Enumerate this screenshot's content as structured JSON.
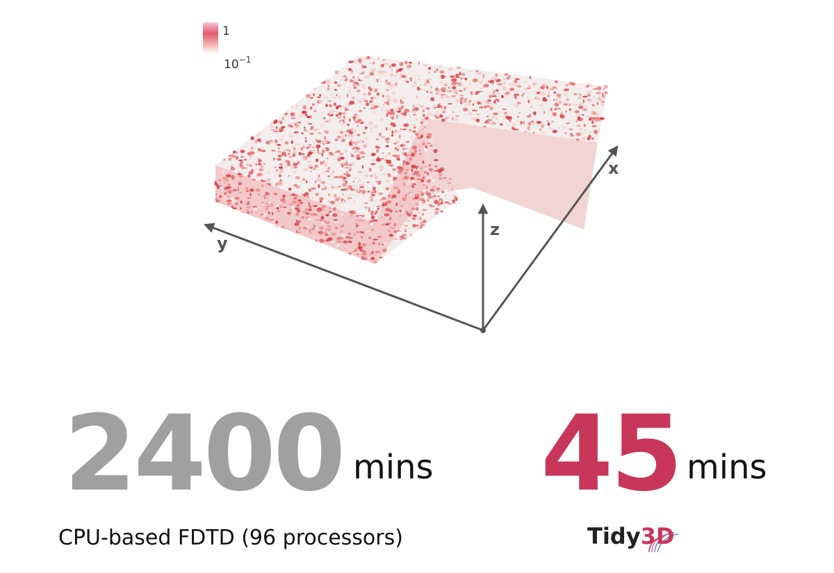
{
  "figure": {
    "legend": {
      "max_label": "1",
      "min_label_base": "10",
      "min_label_exp": "−1"
    },
    "axes": {
      "x": "x",
      "y": "y",
      "z": "z"
    },
    "colors": {
      "speckle_dark": "#d8434c",
      "speckle_mid": "#ea7c7c",
      "speckle_light": "#f6c8c8",
      "speckle_pale": "#eeeeee",
      "axis": "#555555"
    }
  },
  "comparison": {
    "cpu": {
      "value": "2400",
      "unit": "mins",
      "caption": "CPU-based FDTD (96 processors)",
      "color": "#a0a0a0"
    },
    "gpu": {
      "value": "45",
      "unit": "mins",
      "logo_text_main": "Tidy",
      "logo_text_accent": "3D",
      "color": "#c8375a"
    }
  }
}
